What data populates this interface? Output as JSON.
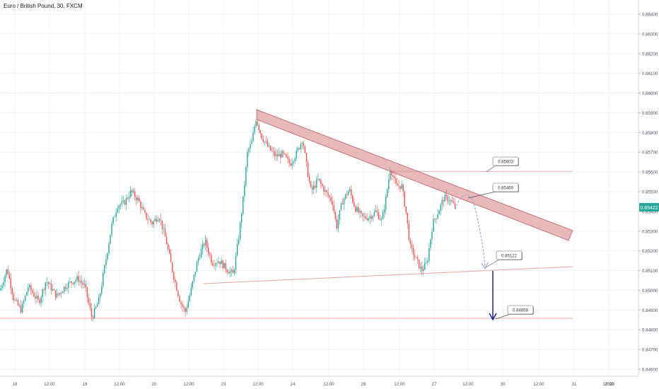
{
  "header": {
    "title": "Euro / British Pound, 30, FXCM"
  },
  "colors": {
    "up": "#26a69a",
    "down": "#ef5350",
    "wick": "#26a69a",
    "channel_fill": "#d98a8a",
    "channel_stroke": "#c05a5a",
    "support_line": "#e8a3a3",
    "level_line": "#ec9d9d",
    "arrow_dotted": "#9fa8da",
    "arrow_down": "#1a237e",
    "price_badge": "#26a69a"
  },
  "chart_data": {
    "type": "candlestick",
    "symbol": "Euro / British Pound",
    "timeframe": "30",
    "source": "FXCM",
    "current_price": "0.85422",
    "y_ticks": [
      "0.86400",
      "0.86300",
      "0.86200",
      "0.86100",
      "0.86000",
      "0.85900",
      "0.85800",
      "0.85700",
      "0.85600",
      "0.85500",
      "0.85400",
      "0.85300",
      "0.85200",
      "0.85100",
      "0.85000",
      "0.84900",
      "0.84800",
      "0.84700",
      "0.84600"
    ],
    "y_range": [
      0.8458,
      0.8648
    ],
    "x_ticks": [
      "18",
      "12:00",
      "19",
      "12:00",
      "20",
      "12:00",
      "23",
      "12:00",
      "24",
      "12:00",
      "26",
      "12:00",
      "27",
      "12:00",
      "30",
      "12:00",
      "31",
      "12:00",
      "2020"
    ],
    "annotations": [
      {
        "label": "0.85603",
        "price": 0.85603
      },
      {
        "label": "0.85469",
        "price": 0.85469
      },
      {
        "label": "0.85122",
        "price": 0.85122
      },
      {
        "label": "0.84858",
        "price": 0.84858
      }
    ],
    "horizontal_levels": [
      0.85603,
      0.84858
    ],
    "price_anchors": [
      [
        0,
        0.85
      ],
      [
        10,
        0.8511
      ],
      [
        20,
        0.8495
      ],
      [
        30,
        0.849
      ],
      [
        40,
        0.8502
      ],
      [
        55,
        0.8494
      ],
      [
        65,
        0.8505
      ],
      [
        80,
        0.8497
      ],
      [
        95,
        0.8503
      ],
      [
        110,
        0.8506
      ],
      [
        120,
        0.8502
      ],
      [
        130,
        0.8486
      ],
      [
        140,
        0.8495
      ],
      [
        150,
        0.8516
      ],
      [
        158,
        0.8533
      ],
      [
        166,
        0.8543
      ],
      [
        175,
        0.8544
      ],
      [
        185,
        0.855
      ],
      [
        195,
        0.8546
      ],
      [
        205,
        0.8538
      ],
      [
        215,
        0.8534
      ],
      [
        225,
        0.8538
      ],
      [
        235,
        0.8525
      ],
      [
        245,
        0.8508
      ],
      [
        255,
        0.8494
      ],
      [
        262,
        0.8489
      ],
      [
        270,
        0.85
      ],
      [
        280,
        0.8516
      ],
      [
        290,
        0.8525
      ],
      [
        300,
        0.8514
      ],
      [
        310,
        0.8515
      ],
      [
        320,
        0.8511
      ],
      [
        330,
        0.8508
      ],
      [
        338,
        0.8528
      ],
      [
        344,
        0.8547
      ],
      [
        350,
        0.857
      ],
      [
        356,
        0.8575
      ],
      [
        362,
        0.8587
      ],
      [
        370,
        0.8578
      ],
      [
        380,
        0.8572
      ],
      [
        390,
        0.8568
      ],
      [
        400,
        0.8569
      ],
      [
        410,
        0.8564
      ],
      [
        420,
        0.857
      ],
      [
        428,
        0.8577
      ],
      [
        434,
        0.8562
      ],
      [
        440,
        0.855
      ],
      [
        450,
        0.8556
      ],
      [
        460,
        0.855
      ],
      [
        470,
        0.8545
      ],
      [
        476,
        0.8532
      ],
      [
        484,
        0.8545
      ],
      [
        494,
        0.8551
      ],
      [
        502,
        0.8542
      ],
      [
        512,
        0.8537
      ],
      [
        522,
        0.8537
      ],
      [
        532,
        0.854
      ],
      [
        540,
        0.8535
      ],
      [
        546,
        0.8547
      ],
      [
        552,
        0.8562
      ],
      [
        560,
        0.8553
      ],
      [
        568,
        0.8553
      ],
      [
        574,
        0.854
      ],
      [
        580,
        0.8522
      ],
      [
        588,
        0.8516
      ],
      [
        596,
        0.851
      ],
      [
        604,
        0.8514
      ],
      [
        612,
        0.8534
      ],
      [
        620,
        0.854
      ],
      [
        628,
        0.8547
      ],
      [
        636,
        0.8546
      ],
      [
        644,
        0.8542
      ]
    ]
  }
}
